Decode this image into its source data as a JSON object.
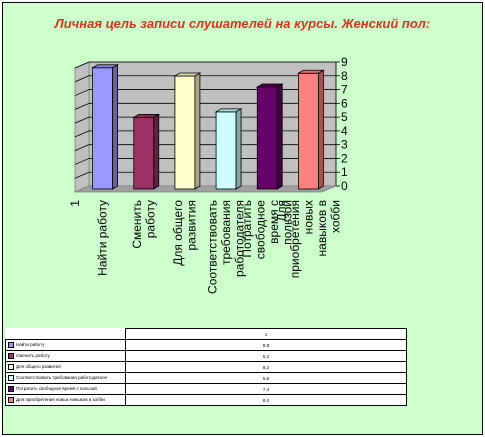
{
  "chart_data": {
    "type": "bar",
    "title": "Личная цель записи слушателей на курсы. Женский пол:",
    "series_label": "1",
    "categories": [
      "Найти работу",
      "Сменить работу",
      "Для общего развития",
      "Соответствовать требования работодателя",
      "Потратить свободное время с пользой",
      "Для приобретения новых навыков в хобби"
    ],
    "axis_categories": [
      "Найти работу",
      "Сменить работу",
      "Для общего развития",
      "Соответствовать требования работодателя",
      "Потратить свободное время с пользой",
      "Для приобретения новых навыков в хобби"
    ],
    "values": [
      8.8,
      5.2,
      8.2,
      5.6,
      7.4,
      8.4
    ],
    "colors": [
      "#9999ff",
      "#993366",
      "#ffffcc",
      "#ccffff",
      "#660066",
      "#ff8080"
    ],
    "ylim": [
      0,
      9
    ],
    "yticks": [
      "0",
      "1",
      "2",
      "3",
      "4",
      "5",
      "6",
      "7",
      "8",
      "9"
    ],
    "grid": true
  },
  "table": {
    "header": "1",
    "rows": [
      {
        "label": "Найти работу",
        "value": "8,8",
        "color": "#9999ff"
      },
      {
        "label": "Сменить работу",
        "value": "5,2",
        "color": "#993366"
      },
      {
        "label": "Для общего развития",
        "value": "8,2",
        "color": "#ffffcc"
      },
      {
        "label": "Соответствовать требования работодателя",
        "value": "5,6",
        "color": "#ccffff"
      },
      {
        "label": "Потратить свободное время с пользой",
        "value": "7,4",
        "color": "#660066"
      },
      {
        "label": "Для приобретения новых навыков в хобби",
        "value": "8,4",
        "color": "#ff8080"
      }
    ]
  }
}
